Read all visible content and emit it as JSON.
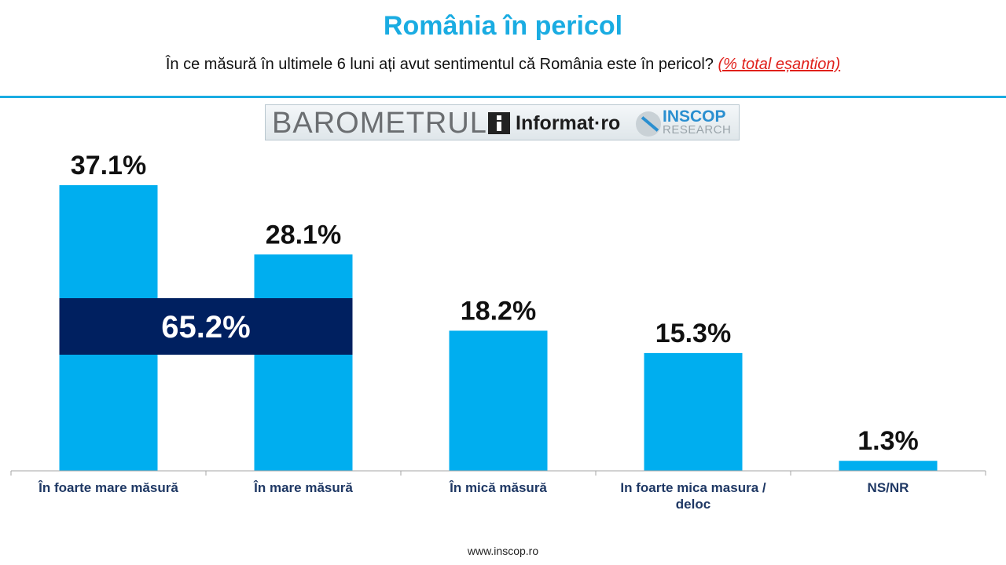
{
  "header": {
    "title": "România în pericol",
    "subtitle": "În ce măsură în ultimele 6 luni ați avut sentimentul că România este în pericol?",
    "subtitle_note": "(% total eșantion)"
  },
  "logos": {
    "barometrul": "BAROMETRUL",
    "informat": "Informat·ro",
    "inscop": "INSCOP",
    "research": "RESEARCH"
  },
  "chart_data": {
    "type": "bar",
    "categories": [
      "În foarte mare măsură",
      "În mare măsură",
      "În mică măsură",
      "In foarte mica masura / deloc",
      "NS/NR"
    ],
    "category_lines": [
      [
        "În foarte mare măsură"
      ],
      [
        "În mare măsură"
      ],
      [
        "În mică măsură"
      ],
      [
        "In foarte mica masura /",
        "deloc"
      ],
      [
        "NS/NR"
      ]
    ],
    "values": [
      37.1,
      28.1,
      18.2,
      15.3,
      1.3
    ],
    "value_labels": [
      "37.1%",
      "28.1%",
      "18.2%",
      "15.3%",
      "1.3%"
    ],
    "ylim": [
      0,
      37.1
    ],
    "grid": false,
    "annotation": {
      "label": "65.2%",
      "spans_categories": [
        0,
        1
      ]
    },
    "colors": {
      "bar": "#00aeef",
      "annotation_band": "#002060",
      "category_text": "#1f3864"
    }
  },
  "footer": "www.inscop.ro"
}
